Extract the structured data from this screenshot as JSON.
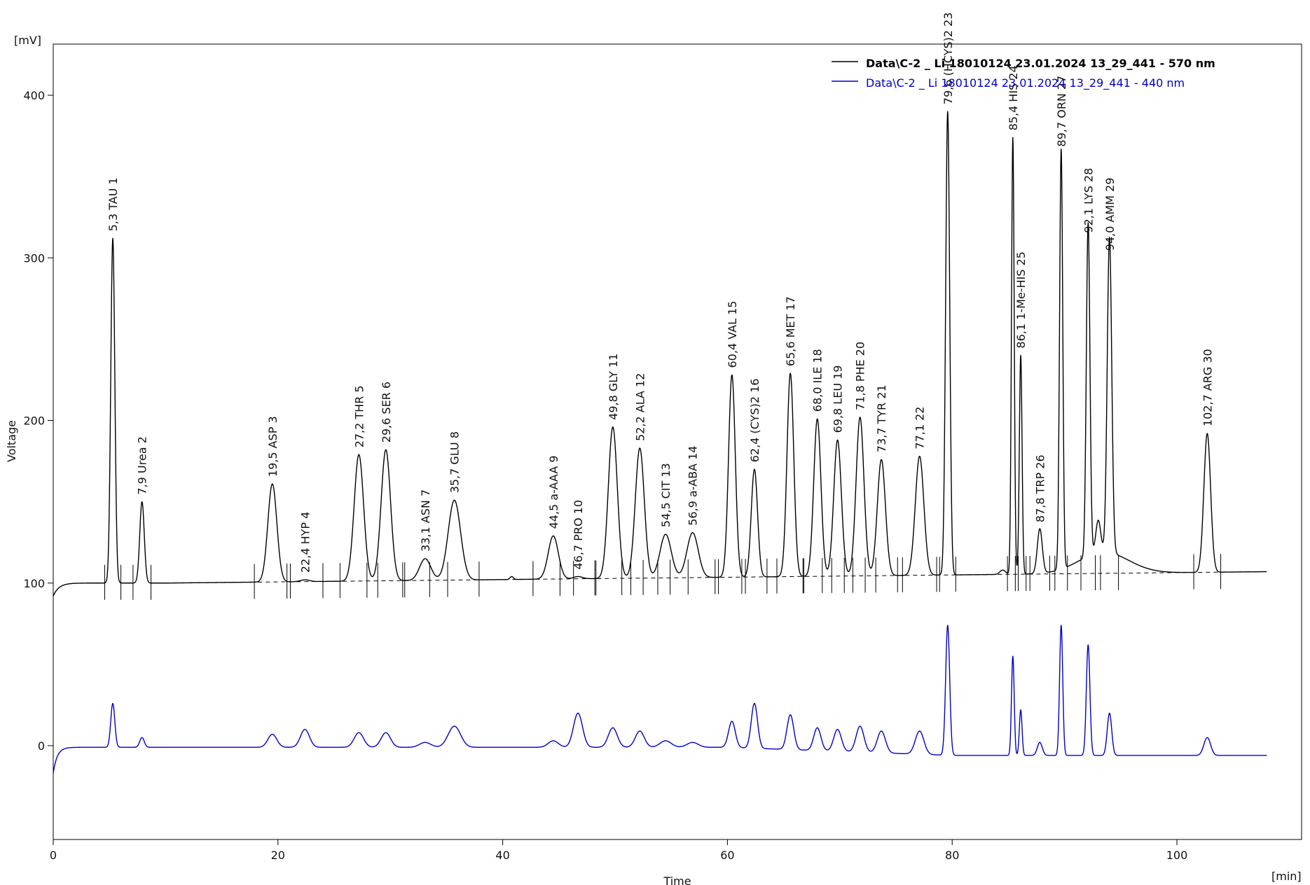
{
  "chart_data": {
    "type": "line",
    "xlabel": "Time",
    "ylabel": "Voltage",
    "xunit": "[min]",
    "yunit": "[mV]",
    "xlim": [
      0,
      111
    ],
    "ylim": [
      -58,
      332
    ],
    "xticks": [
      0,
      20,
      40,
      60,
      80,
      100
    ],
    "yticks": [
      0,
      100,
      200,
      300,
      400
    ],
    "grid": false,
    "legend_position": "top-right",
    "colors": {
      "series_570": "#000000",
      "series_440": "#0000cc",
      "axis": "#000000",
      "baseline": "#000000"
    },
    "series": [
      {
        "name": "Data\\C-2 _ Li 18010124 23.01.2024 13_29_441 - 570 nm",
        "color": "#000000",
        "baseline_start": 100,
        "baseline_end": 107
      },
      {
        "name": "Data\\C-2 _ Li 18010124 23.01.2024 13_29_441 - 440 nm",
        "color": "#0000cc",
        "baseline_start": -1,
        "baseline_end": -6
      }
    ],
    "peaks": [
      {
        "id": "1",
        "label": "5,3 TAU   1",
        "rt": 5.3,
        "h570": 312,
        "w": 0.18,
        "h440": 26
      },
      {
        "id": "2",
        "label": "7,9 Urea   2",
        "rt": 7.9,
        "h570": 150,
        "w": 0.2,
        "h440": 5
      },
      {
        "id": "3",
        "label": "19,5 ASP   3",
        "rt": 19.5,
        "h570": 161,
        "w": 0.4,
        "h440": 7
      },
      {
        "id": "4",
        "label": "22,4 HYP   4",
        "rt": 22.4,
        "h570": 102,
        "w": 0.4,
        "h440": 10
      },
      {
        "id": "5",
        "label": "27,2 THR   5",
        "rt": 27.2,
        "h570": 179,
        "w": 0.42,
        "h440": 8
      },
      {
        "id": "6",
        "label": "29,6 SER   6",
        "rt": 29.6,
        "h570": 182,
        "w": 0.42,
        "h440": 8
      },
      {
        "id": "7",
        "label": "33,1 ASN   7",
        "rt": 33.1,
        "h570": 115,
        "w": 0.5,
        "h440": 2
      },
      {
        "id": "8",
        "label": "35,7 GLU   8",
        "rt": 35.7,
        "h570": 151,
        "w": 0.55,
        "h440": 12
      },
      {
        "id": "9",
        "label": "44,5 a-AAA   9",
        "rt": 44.5,
        "h570": 129,
        "w": 0.45,
        "h440": 3
      },
      {
        "id": "10",
        "label": "46,7 PRO   10",
        "rt": 46.7,
        "h570": 104,
        "w": 0.4,
        "h440": 20
      },
      {
        "id": "11",
        "label": "49,8 GLY   11",
        "rt": 49.8,
        "h570": 196,
        "w": 0.4,
        "h440": 11
      },
      {
        "id": "12",
        "label": "52,2 ALA   12",
        "rt": 52.2,
        "h570": 183,
        "w": 0.4,
        "h440": 9
      },
      {
        "id": "13",
        "label": "54,5 CIT   13",
        "rt": 54.5,
        "h570": 130,
        "w": 0.5,
        "h440": 3
      },
      {
        "id": "14",
        "label": "56,9 a-ABA   14",
        "rt": 56.9,
        "h570": 131,
        "w": 0.5,
        "h440": 2
      },
      {
        "id": "15",
        "label": "60,4 VAL   15",
        "rt": 60.4,
        "h570": 228,
        "w": 0.3,
        "h440": 15
      },
      {
        "id": "16",
        "label": "62,4 (CYS)2   16",
        "rt": 62.4,
        "h570": 170,
        "w": 0.28,
        "h440": 26
      },
      {
        "id": "17",
        "label": "65,6 MET   17",
        "rt": 65.6,
        "h570": 229,
        "w": 0.3,
        "h440": 19
      },
      {
        "id": "18",
        "label": "68,0 ILE   18",
        "rt": 68.0,
        "h570": 201,
        "w": 0.32,
        "h440": 11
      },
      {
        "id": "19",
        "label": "69,8 LEU   19",
        "rt": 69.8,
        "h570": 188,
        "w": 0.34,
        "h440": 10
      },
      {
        "id": "20",
        "label": "71,8 PHE   20",
        "rt": 71.8,
        "h570": 202,
        "w": 0.35,
        "h440": 12
      },
      {
        "id": "21",
        "label": "73,7 TYR   21",
        "rt": 73.7,
        "h570": 176,
        "w": 0.36,
        "h440": 9
      },
      {
        "id": "22",
        "label": "77,1   22",
        "rt": 77.1,
        "h570": 178,
        "w": 0.38,
        "h440": 9
      },
      {
        "id": "23",
        "label": "79,6 (HCYS)2   23",
        "rt": 79.6,
        "h570": 390,
        "w": 0.18,
        "h440": 74
      },
      {
        "id": "24",
        "label": "85,4 HIS   24",
        "rt": 85.4,
        "h570": 374,
        "w": 0.12,
        "h440": 55
      },
      {
        "id": "25",
        "label": "86,1 1-Me-HIS   25",
        "rt": 86.1,
        "h570": 240,
        "w": 0.12,
        "h440": 22
      },
      {
        "id": "26",
        "label": "87,8 TRP   26",
        "rt": 87.8,
        "h570": 133,
        "w": 0.22,
        "h440": 2
      },
      {
        "id": "27",
        "label": "89,7 ORN   27",
        "rt": 89.7,
        "h570": 364,
        "w": 0.14,
        "h440": 74
      },
      {
        "id": "28",
        "label": "92,1 LYS   28",
        "rt": 92.1,
        "h570": 311,
        "w": 0.16,
        "h440": 62
      },
      {
        "id": "29",
        "label": "94,0 AMM   29",
        "rt": 94.0,
        "h570": 300,
        "w": 0.2,
        "h440": 20
      },
      {
        "id": "30",
        "label": "102,7 ARG   30",
        "rt": 102.7,
        "h570": 192,
        "w": 0.3,
        "h440": 5
      }
    ],
    "extra_peaks_570": [
      {
        "rt": 40.8,
        "h": 104,
        "w": 0.15
      },
      {
        "rt": 84.5,
        "h": 108,
        "w": 0.25
      },
      {
        "rt": 93.0,
        "h": 126,
        "w": 0.22
      }
    ]
  }
}
